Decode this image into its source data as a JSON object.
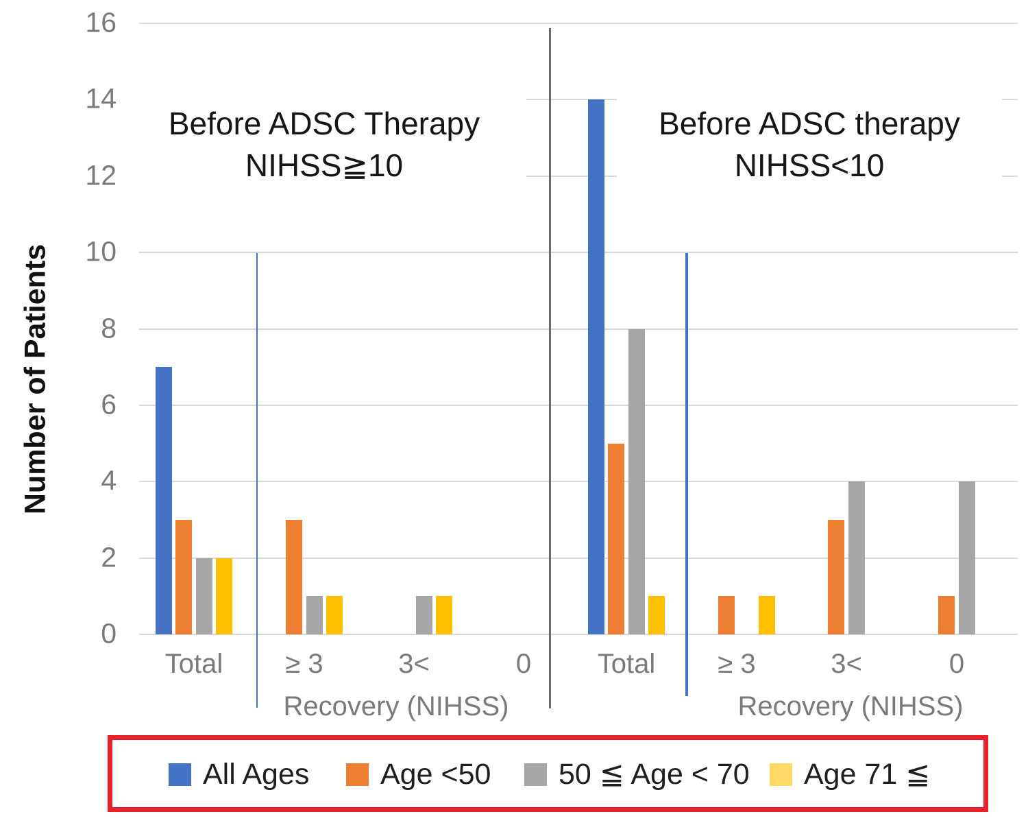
{
  "page": {
    "background": "#FFFFFF"
  },
  "chart_data": {
    "type": "bar",
    "ylabel": "Number of Patients",
    "ylim": [
      0,
      16
    ],
    "ytick_step": 2,
    "yticks": [
      0,
      2,
      4,
      6,
      8,
      10,
      12,
      14,
      16
    ],
    "grid": true,
    "gridline_color": "#D9D9D9",
    "tick_label_color": "#7A7A7A",
    "panels": [
      {
        "title_line1": "Before ADSC Therapy",
        "title_line2": "NIHSS≧10",
        "xlabel": "Recovery (NIHSS)",
        "categories": [
          "Total",
          "≥ 3",
          "3<",
          "0"
        ]
      },
      {
        "title_line1": "Before ADSC therapy",
        "title_line2": "NIHSS<10",
        "xlabel": "Recovery (NIHSS)",
        "categories": [
          "Total",
          "≥ 3",
          "3<",
          "0"
        ]
      }
    ],
    "categories": [
      "Total",
      "≥ 3",
      "3<",
      "0",
      "Total",
      "≥ 3",
      "3<",
      "0"
    ],
    "series": [
      {
        "name": "All Ages",
        "color": "#4472C4",
        "values": [
          7,
          0,
          0,
          0,
          14,
          0,
          0,
          0
        ]
      },
      {
        "name": "Age <50",
        "color": "#ED7D31",
        "values": [
          3,
          3,
          0,
          0,
          5,
          1,
          3,
          1
        ]
      },
      {
        "name": "50 ≦ Age < 70",
        "color": "#A6A6A6",
        "values": [
          2,
          1,
          1,
          0,
          8,
          0,
          4,
          4
        ]
      },
      {
        "name": "Age 71 ≦",
        "color": "#FFC000",
        "values": [
          2,
          1,
          1,
          0,
          1,
          1,
          0,
          0
        ]
      }
    ],
    "legend_position": "bottom",
    "divider_line_color": "#6B6B6B",
    "inner_divider_line_color": "#4472C4"
  },
  "legend": {
    "border_color": "#E9212B",
    "items": [
      {
        "label": "All Ages",
        "color": "#4472C4"
      },
      {
        "label": "Age <50",
        "color": "#ED7D31"
      },
      {
        "label": "50 ≦ Age < 70",
        "color": "#A6A6A6"
      },
      {
        "label": "Age 71 ≦",
        "color": "#FFD966"
      }
    ]
  }
}
